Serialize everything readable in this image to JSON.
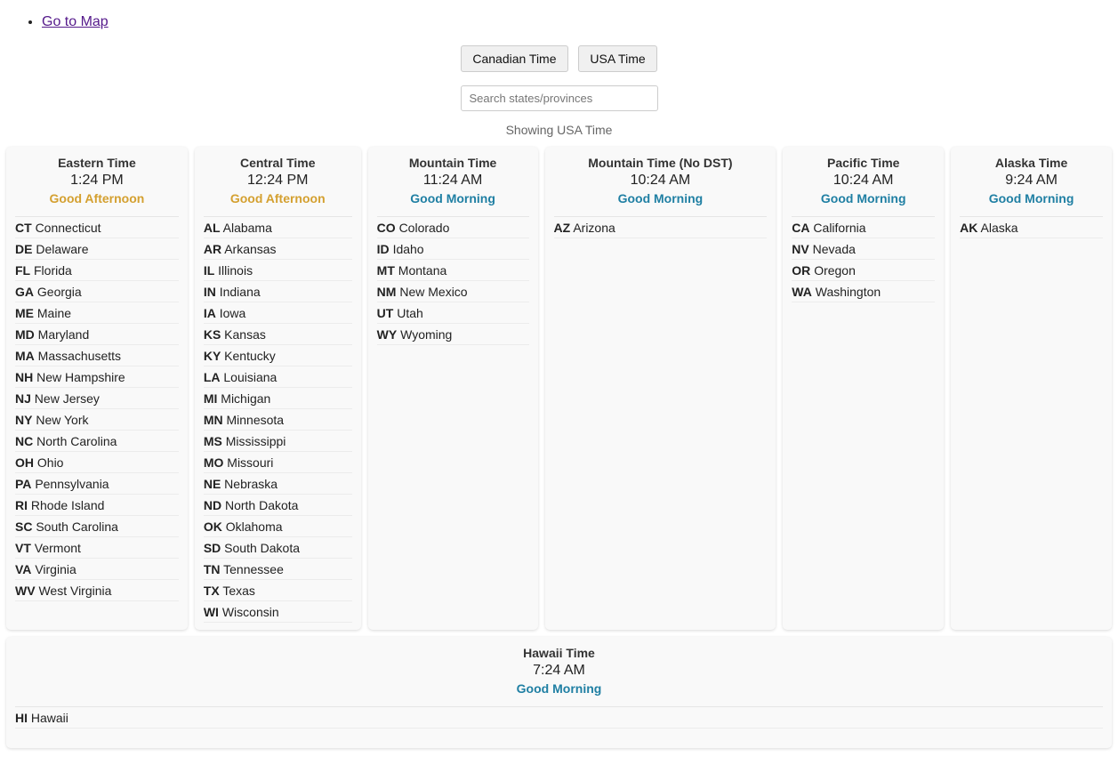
{
  "nav": {
    "map_link": "Go to Map"
  },
  "buttons": {
    "canadian": "Canadian Time",
    "usa": "USA Time"
  },
  "search": {
    "placeholder": "Search states/provinces",
    "value": ""
  },
  "status": "Showing USA Time",
  "colors": {
    "afternoon": "#d4a030",
    "morning": "#1f7fa3"
  },
  "zones": [
    {
      "name": "Eastern Time",
      "time": "1:24 PM",
      "greeting": "Good Afternoon",
      "period": "aft",
      "states": [
        [
          "CT",
          "Connecticut"
        ],
        [
          "DE",
          "Delaware"
        ],
        [
          "FL",
          "Florida"
        ],
        [
          "GA",
          "Georgia"
        ],
        [
          "ME",
          "Maine"
        ],
        [
          "MD",
          "Maryland"
        ],
        [
          "MA",
          "Massachusetts"
        ],
        [
          "NH",
          "New Hampshire"
        ],
        [
          "NJ",
          "New Jersey"
        ],
        [
          "NY",
          "New York"
        ],
        [
          "NC",
          "North Carolina"
        ],
        [
          "OH",
          "Ohio"
        ],
        [
          "PA",
          "Pennsylvania"
        ],
        [
          "RI",
          "Rhode Island"
        ],
        [
          "SC",
          "South Carolina"
        ],
        [
          "VT",
          "Vermont"
        ],
        [
          "VA",
          "Virginia"
        ],
        [
          "WV",
          "West Virginia"
        ]
      ]
    },
    {
      "name": "Central Time",
      "time": "12:24 PM",
      "greeting": "Good Afternoon",
      "period": "aft",
      "states": [
        [
          "AL",
          "Alabama"
        ],
        [
          "AR",
          "Arkansas"
        ],
        [
          "IL",
          "Illinois"
        ],
        [
          "IN",
          "Indiana"
        ],
        [
          "IA",
          "Iowa"
        ],
        [
          "KS",
          "Kansas"
        ],
        [
          "KY",
          "Kentucky"
        ],
        [
          "LA",
          "Louisiana"
        ],
        [
          "MI",
          "Michigan"
        ],
        [
          "MN",
          "Minnesota"
        ],
        [
          "MS",
          "Mississippi"
        ],
        [
          "MO",
          "Missouri"
        ],
        [
          "NE",
          "Nebraska"
        ],
        [
          "ND",
          "North Dakota"
        ],
        [
          "OK",
          "Oklahoma"
        ],
        [
          "SD",
          "South Dakota"
        ],
        [
          "TN",
          "Tennessee"
        ],
        [
          "TX",
          "Texas"
        ],
        [
          "WI",
          "Wisconsin"
        ]
      ]
    },
    {
      "name": "Mountain Time",
      "time": "11:24 AM",
      "greeting": "Good Morning",
      "period": "morn",
      "states": [
        [
          "CO",
          "Colorado"
        ],
        [
          "ID",
          "Idaho"
        ],
        [
          "MT",
          "Montana"
        ],
        [
          "NM",
          "New Mexico"
        ],
        [
          "UT",
          "Utah"
        ],
        [
          "WY",
          "Wyoming"
        ]
      ]
    },
    {
      "name": "Mountain Time (No DST)",
      "time": "10:24 AM",
      "greeting": "Good Morning",
      "period": "morn",
      "states": [
        [
          "AZ",
          "Arizona"
        ]
      ]
    },
    {
      "name": "Pacific Time",
      "time": "10:24 AM",
      "greeting": "Good Morning",
      "period": "morn",
      "states": [
        [
          "CA",
          "California"
        ],
        [
          "NV",
          "Nevada"
        ],
        [
          "OR",
          "Oregon"
        ],
        [
          "WA",
          "Washington"
        ]
      ]
    },
    {
      "name": "Alaska Time",
      "time": "9:24 AM",
      "greeting": "Good Morning",
      "period": "morn",
      "states": [
        [
          "AK",
          "Alaska"
        ]
      ]
    },
    {
      "name": "Hawaii Time",
      "time": "7:24 AM",
      "greeting": "Good Morning",
      "period": "morn",
      "states": [
        [
          "HI",
          "Hawaii"
        ]
      ]
    }
  ]
}
